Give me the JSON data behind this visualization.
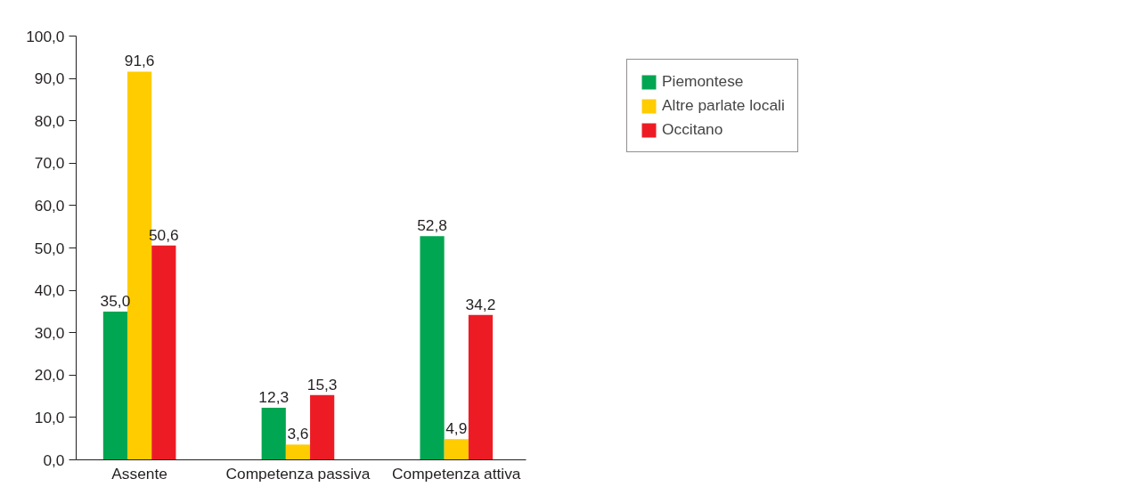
{
  "chart_data": {
    "type": "bar",
    "categories": [
      "Assente",
      "Competenza passiva",
      "Competenza attiva"
    ],
    "series": [
      {
        "name": "Piemontese",
        "color": "#00a651",
        "values": [
          35.0,
          12.3,
          52.8
        ],
        "value_labels": [
          "35,0",
          "12,3",
          "52,8"
        ]
      },
      {
        "name": "Altre parlate locali",
        "color": "#ffcc00",
        "values": [
          91.6,
          3.6,
          4.9
        ],
        "value_labels": [
          "91,6",
          "3,6",
          "4,9"
        ]
      },
      {
        "name": "Occitano",
        "color": "#ed1c24",
        "values": [
          50.6,
          15.3,
          34.2
        ],
        "value_labels": [
          "50,6",
          "15,3",
          "34,2"
        ]
      }
    ],
    "ylim": [
      0,
      100
    ],
    "yticks": [
      {
        "value": 0,
        "label": "0,0"
      },
      {
        "value": 10,
        "label": "10,0"
      },
      {
        "value": 20,
        "label": "20,0"
      },
      {
        "value": 30,
        "label": "30,0"
      },
      {
        "value": 40,
        "label": "40,0"
      },
      {
        "value": 50,
        "label": "50,0"
      },
      {
        "value": 60,
        "label": "60,0"
      },
      {
        "value": 70,
        "label": "70,0"
      },
      {
        "value": 80,
        "label": "80,0"
      },
      {
        "value": 90,
        "label": "90,0"
      },
      {
        "value": 100,
        "label": "100,0"
      }
    ],
    "grid": false,
    "legend": "top right"
  }
}
